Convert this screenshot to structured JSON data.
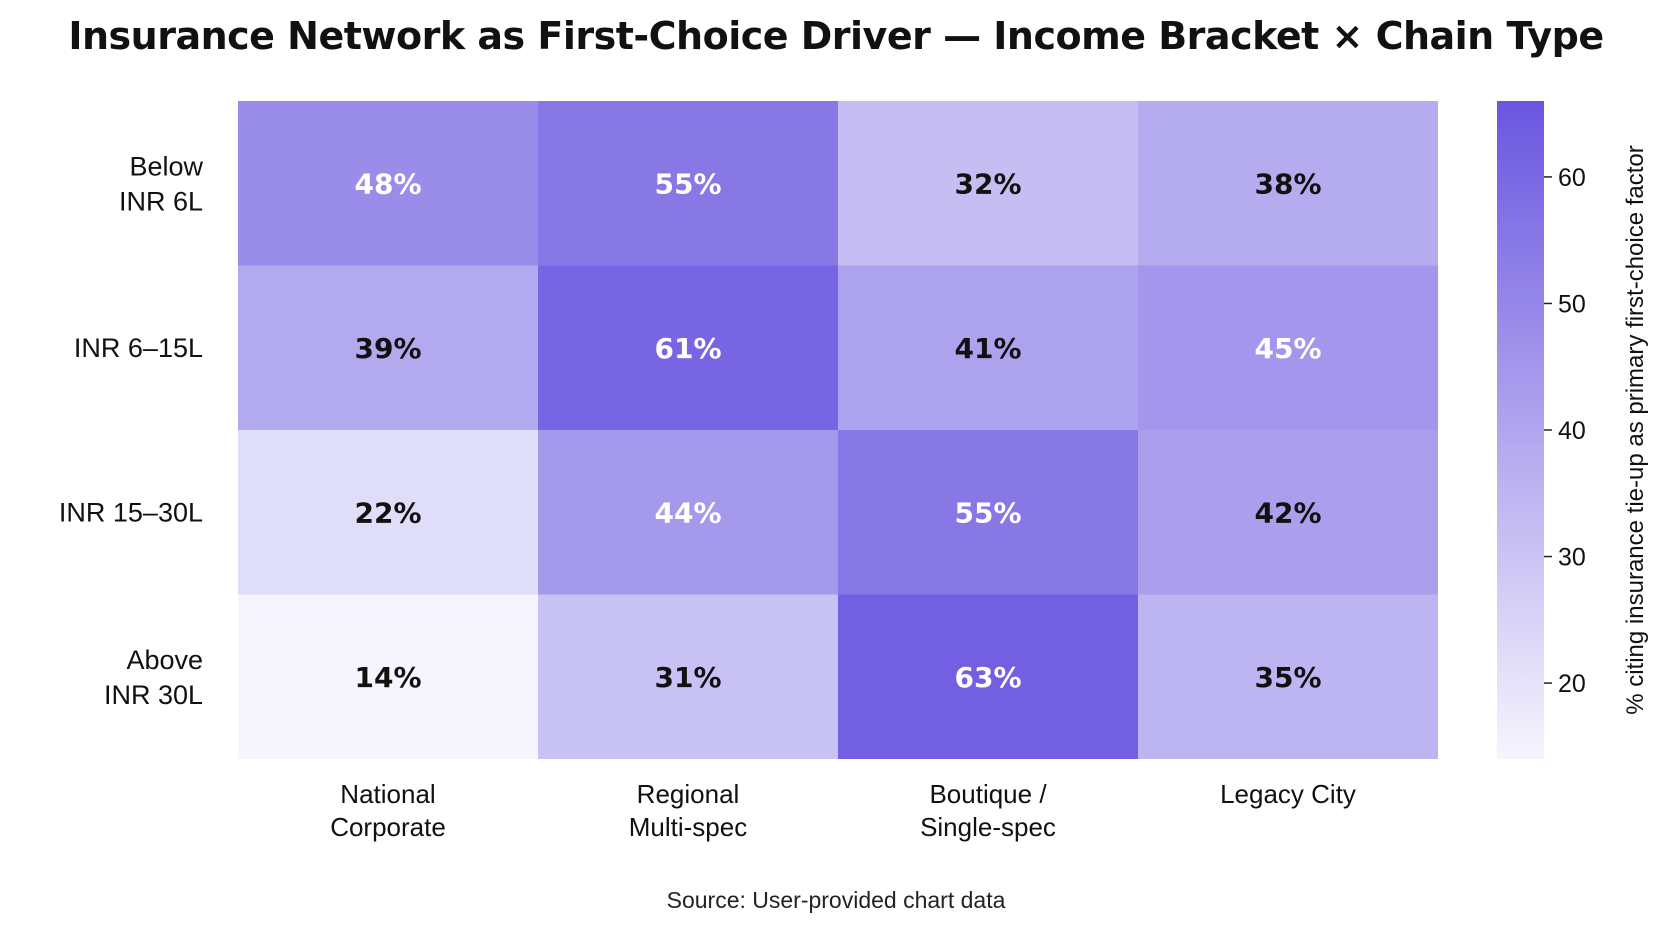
{
  "chart_data": {
    "type": "heatmap",
    "title": "Insurance Network as First-Choice Driver — Income Bracket × Chain Type",
    "rows": [
      "Below INR 6L",
      "INR 6–15L",
      "INR 15–30L",
      "Above INR 30L"
    ],
    "columns": [
      "National Corporate",
      "Regional Multi-spec",
      "Boutique / Single-spec",
      "Legacy City"
    ],
    "values": [
      [
        48,
        55,
        32,
        38
      ],
      [
        39,
        61,
        41,
        45
      ],
      [
        22,
        44,
        55,
        42
      ],
      [
        14,
        31,
        63,
        35
      ]
    ],
    "value_suffix": "%",
    "colorbar": {
      "label": "% citing insurance tie-up as primary first-choice factor",
      "range": [
        14,
        66
      ],
      "ticks": [
        20,
        30,
        40,
        50,
        60
      ],
      "color_low": "#f6f5fd",
      "color_high": "#6a56e0"
    },
    "source": "Source: User-provided chart data"
  }
}
